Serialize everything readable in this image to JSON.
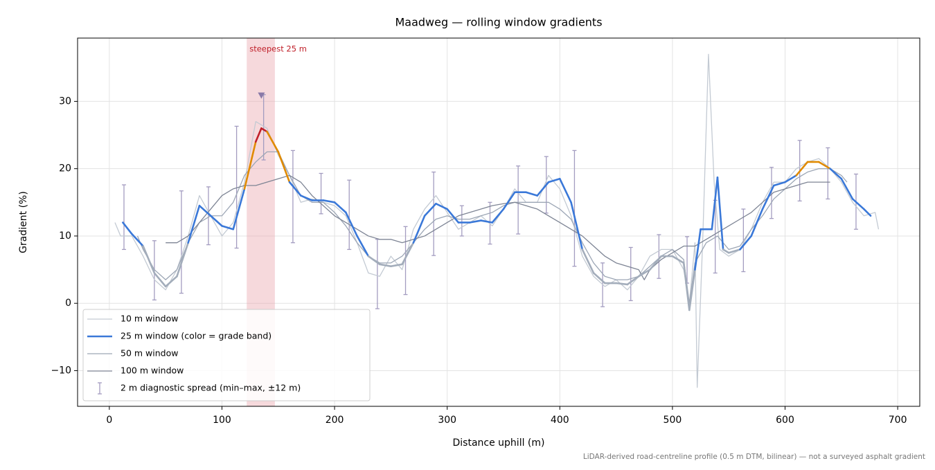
{
  "chart_data": {
    "type": "line",
    "title": "Maadweg — rolling window gradients",
    "xlabel": "Distance uphill (m)",
    "ylabel": "Gradient (%)",
    "footnote": "LiDAR-derived road-centreline profile (0.5 m DTM, bilinear) — not a surveyed asphalt gradient",
    "xlim": [
      -28.2,
      719.6
    ],
    "ylim": [
      -15.3,
      39.4
    ],
    "xticks": [
      0,
      100,
      200,
      300,
      400,
      500,
      600,
      700
    ],
    "yticks": [
      {
        "value": -10,
        "label": "−10"
      },
      0,
      10,
      20,
      30
    ],
    "grid": true,
    "legend": "lower left",
    "series": [
      {
        "name": "10 m window",
        "color": "#c3cad3",
        "width": 1.3,
        "x": [
          5,
          10,
          20,
          30,
          40,
          50,
          60,
          70,
          80,
          90,
          100,
          110,
          120,
          130,
          140,
          150,
          160,
          170,
          180,
          190,
          200,
          210,
          220,
          230,
          240,
          250,
          260,
          270,
          280,
          290,
          300,
          310,
          320,
          330,
          340,
          350,
          360,
          370,
          380,
          390,
          400,
          410,
          420,
          430,
          440,
          450,
          460,
          470,
          480,
          490,
          500,
          510,
          515,
          520,
          522,
          527,
          532,
          537,
          542,
          550,
          560,
          570,
          580,
          590,
          600,
          610,
          620,
          630,
          640,
          650,
          660,
          670,
          680,
          683
        ],
        "values": [
          12,
          10,
          10,
          7,
          3.5,
          2,
          5,
          10,
          16,
          13,
          10,
          12,
          18,
          27,
          26,
          22,
          19,
          15,
          15.5,
          15,
          14.5,
          13,
          9,
          4.5,
          4,
          7,
          5,
          11,
          14,
          16,
          13.5,
          11,
          12,
          13,
          11.5,
          14,
          17,
          15,
          15,
          19,
          17,
          13,
          7,
          4,
          2.5,
          3.5,
          2,
          4,
          7,
          8,
          8,
          5,
          0,
          9,
          -12.5,
          10,
          37,
          18,
          8,
          7,
          8,
          11,
          15,
          18,
          18,
          20,
          21,
          21.5,
          20,
          18,
          15,
          13,
          13.5,
          11
        ]
      },
      {
        "name": "25 m window (color = grade band)",
        "color": "#3a78d8",
        "width": 2.6,
        "band_edges": [
          8,
          20,
          25
        ],
        "band_colors": [
          "#a3adbb",
          "#3a78d8",
          "#e08a00",
          "#c0202a"
        ],
        "x": [
          12,
          20,
          30,
          40,
          50,
          60,
          70,
          80,
          90,
          100,
          110,
          120,
          130,
          135,
          140,
          150,
          160,
          170,
          180,
          190,
          200,
          210,
          220,
          230,
          240,
          250,
          260,
          270,
          280,
          290,
          300,
          310,
          320,
          330,
          340,
          350,
          360,
          370,
          380,
          390,
          400,
          410,
          420,
          430,
          440,
          450,
          460,
          470,
          480,
          490,
          500,
          510,
          515,
          520,
          525,
          530,
          535,
          540,
          545,
          550,
          560,
          570,
          580,
          590,
          600,
          610,
          620,
          630,
          640,
          650,
          660,
          670,
          676
        ],
        "values": [
          12,
          10.3,
          8.5,
          4.5,
          2.5,
          4,
          9,
          14.5,
          13,
          11.5,
          11,
          17,
          24,
          26,
          25.5,
          22.5,
          18,
          16,
          15.3,
          15.3,
          15,
          13.5,
          10,
          7,
          5.8,
          5.5,
          5.8,
          9,
          13,
          14.8,
          14,
          12,
          12,
          12.3,
          12,
          14,
          16.5,
          16.5,
          16,
          18,
          18.5,
          15,
          8,
          4.5,
          3,
          3,
          2.8,
          4,
          5,
          7,
          7,
          6,
          -1,
          5,
          11,
          11,
          11,
          18.7,
          8,
          7.5,
          8,
          10,
          14,
          17.5,
          18,
          19,
          21,
          21,
          20,
          18.5,
          15.5,
          14,
          13
        ]
      },
      {
        "name": "50 m window",
        "color": "#9ca6b5",
        "width": 1.3,
        "x": [
          25,
          30,
          40,
          50,
          60,
          70,
          80,
          90,
          100,
          110,
          120,
          130,
          140,
          150,
          160,
          170,
          180,
          190,
          200,
          210,
          220,
          230,
          240,
          250,
          260,
          270,
          280,
          290,
          300,
          310,
          320,
          330,
          340,
          350,
          360,
          370,
          380,
          390,
          400,
          410,
          420,
          430,
          440,
          450,
          460,
          470,
          480,
          490,
          500,
          510,
          515,
          520,
          530,
          540,
          550,
          560,
          570,
          580,
          590,
          600,
          610,
          620,
          630,
          640,
          650,
          655
        ],
        "values": [
          10,
          8,
          5,
          3.5,
          5,
          9,
          12,
          13,
          13,
          15,
          19,
          21,
          22.5,
          22.5,
          19,
          16,
          15,
          15,
          13.5,
          11.5,
          9,
          7,
          6,
          6,
          7,
          9,
          11,
          12.5,
          13,
          12.5,
          12.5,
          13,
          13.5,
          14.5,
          15,
          15,
          15,
          15,
          14,
          12.5,
          9,
          6,
          4,
          3.5,
          3.5,
          4,
          5.5,
          7,
          8,
          6.5,
          0,
          6,
          9,
          10,
          8,
          8.5,
          11,
          13,
          15.5,
          17,
          18.5,
          19.5,
          20,
          20,
          19,
          18
        ]
      },
      {
        "name": "100 m window",
        "color": "#7d8494",
        "width": 1.3,
        "x": [
          50,
          60,
          70,
          80,
          90,
          100,
          110,
          120,
          130,
          140,
          150,
          160,
          170,
          180,
          190,
          200,
          210,
          220,
          230,
          240,
          250,
          260,
          270,
          280,
          290,
          300,
          310,
          320,
          330,
          340,
          350,
          360,
          370,
          380,
          390,
          400,
          410,
          420,
          430,
          440,
          450,
          460,
          470,
          475,
          480,
          490,
          500,
          510,
          520,
          530,
          540,
          550,
          560,
          570,
          580,
          590,
          600,
          610,
          620,
          630,
          640
        ],
        "values": [
          9,
          9,
          10,
          12,
          14,
          16,
          17,
          17.5,
          17.5,
          18,
          18.5,
          19,
          18,
          16,
          14.5,
          13,
          12,
          11,
          10,
          9.5,
          9.5,
          9,
          9.5,
          10,
          11,
          12,
          13,
          13.5,
          14,
          14.5,
          14.8,
          15,
          14.5,
          14,
          13,
          12,
          11,
          10,
          8.5,
          7,
          6,
          5.5,
          5,
          3.5,
          5,
          6.5,
          7.5,
          8.5,
          8.5,
          9.5,
          10.5,
          11.5,
          12.5,
          13.5,
          15,
          16.5,
          17,
          17.5,
          18,
          18,
          18
        ]
      }
    ],
    "spread": {
      "name": "2 m diagnostic spread (min–max, ±12 m)",
      "color": "#a39cc0",
      "x": [
        13,
        40,
        64,
        88,
        113,
        137,
        163,
        188,
        213,
        238,
        263,
        288,
        313,
        338,
        363,
        388,
        413,
        438,
        463,
        488,
        513,
        538,
        563,
        588,
        613,
        638,
        663
      ],
      "low": [
        8,
        0.5,
        1.5,
        8.7,
        8.2,
        21.3,
        9,
        13.3,
        8,
        -0.8,
        1.3,
        7.1,
        10,
        8.8,
        10.3,
        13.4,
        5.5,
        -0.5,
        0.4,
        3.7,
        3,
        4.5,
        4.7,
        12.6,
        15.2,
        15.5,
        11
      ],
      "high": [
        17.6,
        9.3,
        16.7,
        17.3,
        26.3,
        31,
        22.7,
        19.3,
        18.3,
        9.5,
        11.4,
        19.5,
        14.5,
        15,
        20.4,
        21.8,
        22.7,
        6,
        8.3,
        10.2,
        9.9,
        15.3,
        14,
        20.2,
        24.2,
        23.1,
        19.2
      ]
    },
    "highlight": {
      "label": "steepest 25 m",
      "x": [
        122,
        147
      ],
      "color": "#c0202a",
      "fill": "#e8a0a8",
      "peak_x": 135,
      "peak_y": 30.8,
      "peak_color": "#8a7aa8"
    }
  }
}
